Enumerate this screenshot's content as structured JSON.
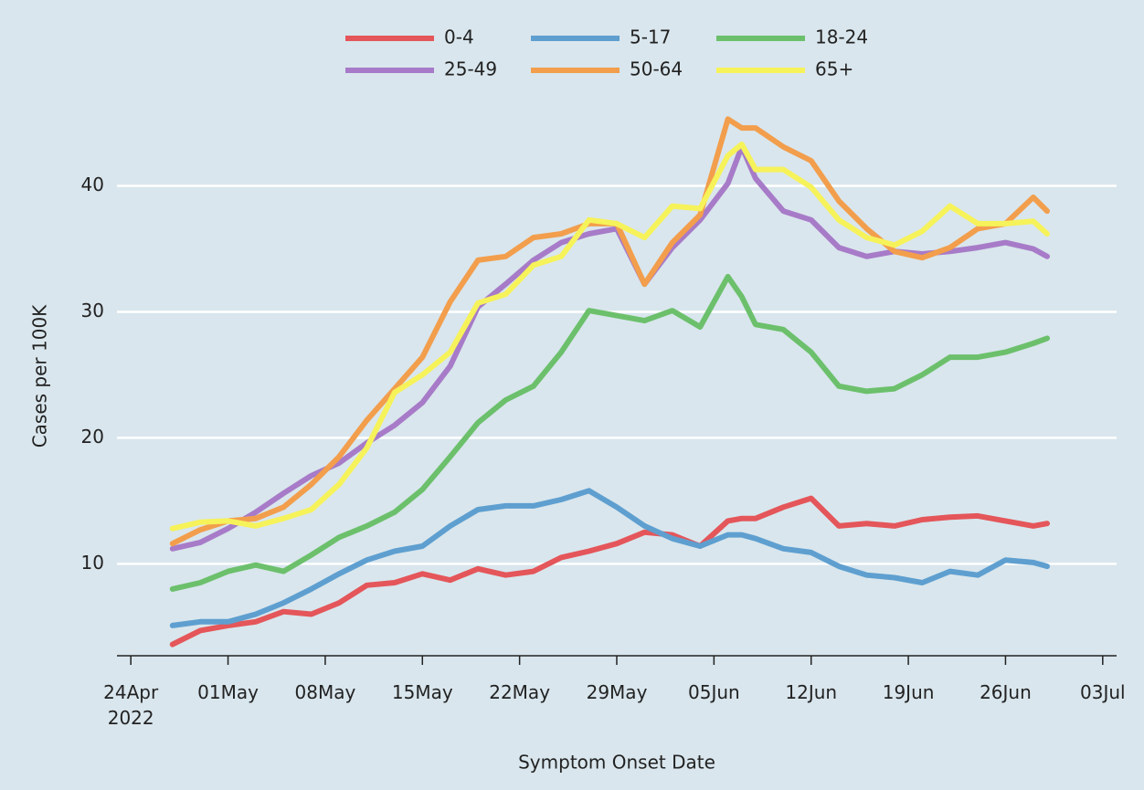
{
  "chart_data": {
    "type": "line",
    "x_label": "Symptom Onset Date",
    "y_label": "Cases per 100K",
    "x": [
      "2022-04-27",
      "2022-04-29",
      "2022-05-01",
      "2022-05-03",
      "2022-05-05",
      "2022-05-07",
      "2022-05-09",
      "2022-05-11",
      "2022-05-13",
      "2022-05-15",
      "2022-05-17",
      "2022-05-19",
      "2022-05-21",
      "2022-05-23",
      "2022-05-25",
      "2022-05-27",
      "2022-05-29",
      "2022-05-31",
      "2022-06-02",
      "2022-06-04",
      "2022-06-06",
      "2022-06-07",
      "2022-06-08",
      "2022-06-10",
      "2022-06-12",
      "2022-06-14",
      "2022-06-16",
      "2022-06-18",
      "2022-06-20",
      "2022-06-22",
      "2022-06-24",
      "2022-06-26",
      "2022-06-28",
      "2022-06-29"
    ],
    "series": [
      {
        "name": "0-4",
        "color": "#e4565a",
        "values": [
          3.6,
          4.7,
          5.1,
          5.4,
          6.2,
          6.0,
          6.9,
          8.3,
          8.5,
          9.2,
          8.7,
          9.6,
          9.1,
          9.4,
          10.5,
          11.0,
          11.6,
          12.5,
          12.3,
          11.4,
          13.4,
          13.6,
          13.6,
          14.5,
          15.2,
          13.0,
          13.2,
          13.0,
          13.5,
          13.7,
          13.8,
          13.4,
          13.0,
          13.2
        ]
      },
      {
        "name": "5-17",
        "color": "#5e9fd0",
        "values": [
          5.1,
          5.4,
          5.4,
          6.0,
          6.9,
          8.0,
          9.2,
          10.3,
          11.0,
          11.4,
          13.0,
          14.3,
          14.6,
          14.6,
          15.1,
          15.8,
          14.5,
          13.0,
          12.0,
          11.4,
          12.3,
          12.3,
          12.0,
          11.2,
          10.9,
          9.8,
          9.1,
          8.9,
          8.5,
          9.4,
          9.1,
          10.3,
          10.1,
          9.8
        ]
      },
      {
        "name": "18-24",
        "color": "#6cc06c",
        "values": [
          8.0,
          8.5,
          9.4,
          9.9,
          9.4,
          10.7,
          12.1,
          13.0,
          14.1,
          15.9,
          18.5,
          21.2,
          23.0,
          24.1,
          26.8,
          30.1,
          29.7,
          29.3,
          30.1,
          28.8,
          32.8,
          31.2,
          29.0,
          28.6,
          26.8,
          24.1,
          23.7,
          23.9,
          25.0,
          26.4,
          26.4,
          26.8,
          27.5,
          27.9
        ]
      },
      {
        "name": "25-49",
        "color": "#a77bc8",
        "values": [
          11.2,
          11.7,
          12.8,
          14.1,
          15.6,
          17.0,
          18.0,
          19.6,
          21.0,
          22.8,
          25.7,
          30.4,
          32.2,
          34.1,
          35.5,
          36.2,
          36.6,
          32.2,
          35.1,
          37.3,
          40.2,
          43.1,
          40.6,
          38.0,
          37.3,
          35.1,
          34.4,
          34.8,
          34.6,
          34.8,
          35.1,
          35.5,
          35.0,
          34.4
        ]
      },
      {
        "name": "50-64",
        "color": "#f29e4c",
        "values": [
          11.6,
          12.7,
          13.4,
          13.6,
          14.5,
          16.3,
          18.5,
          21.4,
          23.9,
          26.4,
          30.8,
          34.1,
          34.4,
          35.9,
          36.2,
          37.0,
          37.0,
          32.2,
          35.5,
          37.7,
          45.3,
          44.6,
          44.6,
          43.1,
          42.0,
          38.8,
          36.6,
          34.8,
          34.3,
          35.1,
          36.6,
          37.0,
          39.1,
          38.0
        ]
      },
      {
        "name": "65+",
        "color": "#f6f25a",
        "values": [
          12.8,
          13.3,
          13.4,
          13.0,
          13.6,
          14.3,
          16.3,
          19.2,
          23.6,
          25.0,
          26.8,
          30.7,
          31.4,
          33.7,
          34.4,
          37.3,
          37.0,
          35.9,
          38.4,
          38.2,
          42.4,
          43.3,
          41.3,
          41.3,
          39.9,
          37.3,
          35.9,
          35.3,
          36.4,
          38.4,
          37.0,
          37.0,
          37.2,
          36.2
        ]
      }
    ],
    "xlim": [
      "2022-04-23",
      "2022-07-04"
    ],
    "xticks": [
      {
        "value": "2022-04-24",
        "label": "24Apr\n2022"
      },
      {
        "value": "2022-05-01",
        "label": "01May"
      },
      {
        "value": "2022-05-08",
        "label": "08May"
      },
      {
        "value": "2022-05-15",
        "label": "15May"
      },
      {
        "value": "2022-05-22",
        "label": "22May"
      },
      {
        "value": "2022-05-29",
        "label": "29May"
      },
      {
        "value": "2022-06-05",
        "label": "05Jun"
      },
      {
        "value": "2022-06-12",
        "label": "12Jun"
      },
      {
        "value": "2022-06-19",
        "label": "19Jun"
      },
      {
        "value": "2022-06-26",
        "label": "26Jun"
      },
      {
        "value": "2022-07-03",
        "label": "03Jul"
      }
    ],
    "ylim": [
      2.7,
      47
    ],
    "yticks": [
      10,
      20,
      30,
      40
    ],
    "grid": true,
    "legend": "top"
  }
}
